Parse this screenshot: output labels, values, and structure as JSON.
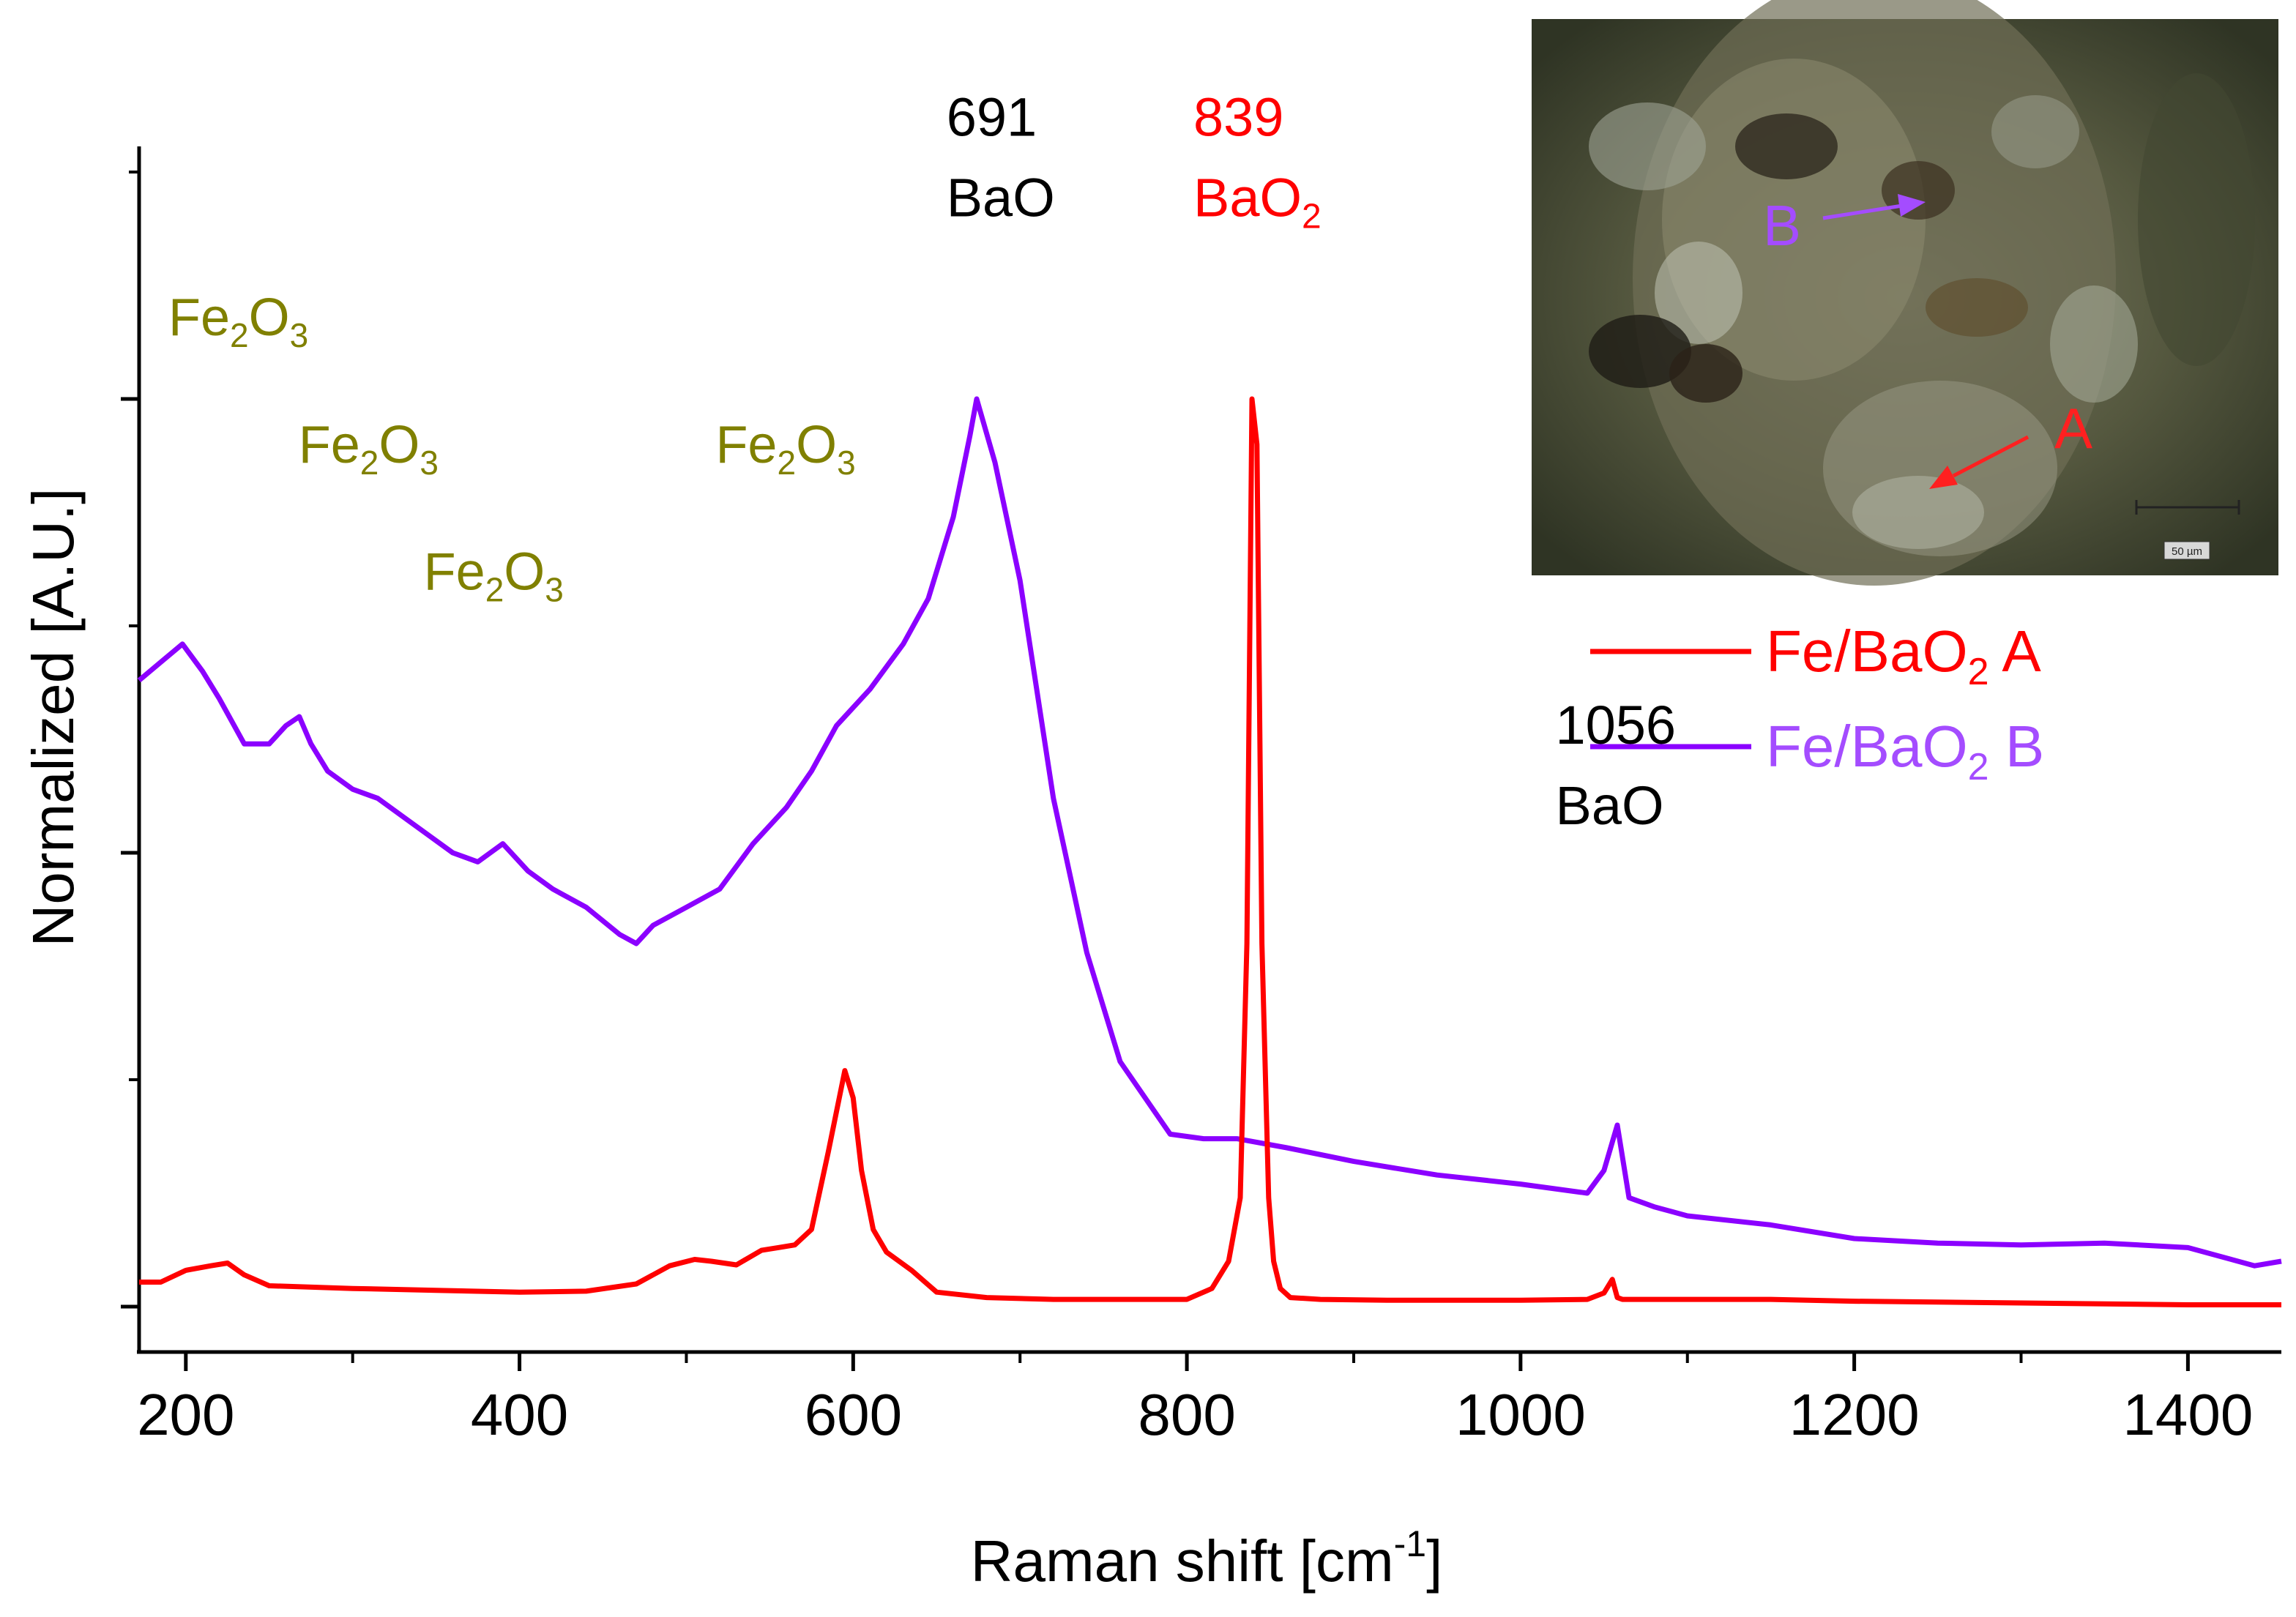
{
  "chart_data": {
    "type": "line",
    "xlabel_main": "Raman shift [cm",
    "xlabel_sup": "-1",
    "xlabel_end": "]",
    "ylabel": "Normalized [A.U.]",
    "xlim": [
      172,
      1456
    ],
    "ylim": [
      0,
      1
    ],
    "x_ticks": [
      200,
      400,
      600,
      800,
      1000,
      1200,
      1400
    ],
    "x_tick_labels": [
      "200",
      "400",
      "600",
      "800",
      "1000",
      "1200",
      "1400"
    ],
    "y_ticks_major": [
      0,
      0.5,
      1
    ],
    "y_ticks_minor": [
      0.25,
      0.75,
      1.25
    ],
    "colors": {
      "A": "#ff0000",
      "B": "#8b00ff",
      "annot_fe": "#808000",
      "black": "#000000"
    },
    "series": [
      {
        "name": "Fe/BaO2 A",
        "legend_base": "Fe/BaO",
        "legend_sub": "2",
        "legend_end": " A",
        "color": "#ff0000",
        "x": [
          172,
          185,
          200,
          215,
          225,
          235,
          250,
          300,
          350,
          400,
          440,
          470,
          490,
          505,
          515,
          530,
          545,
          555,
          565,
          575,
          585,
          595,
          600,
          605,
          612,
          620,
          635,
          650,
          680,
          720,
          760,
          800,
          815,
          825,
          832,
          836,
          839,
          842,
          845,
          849,
          852,
          856,
          862,
          880,
          920,
          1000,
          1040,
          1050,
          1055,
          1058,
          1061,
          1065,
          1075,
          1150,
          1200,
          1300,
          1400,
          1456
        ],
        "y": [
          0.027,
          0.027,
          0.04,
          0.045,
          0.048,
          0.035,
          0.023,
          0.02,
          0.018,
          0.016,
          0.017,
          0.025,
          0.045,
          0.052,
          0.05,
          0.046,
          0.062,
          0.065,
          0.068,
          0.085,
          0.17,
          0.26,
          0.23,
          0.15,
          0.085,
          0.06,
          0.04,
          0.016,
          0.01,
          0.008,
          0.008,
          0.008,
          0.02,
          0.05,
          0.12,
          0.4,
          1.0,
          0.95,
          0.4,
          0.12,
          0.05,
          0.02,
          0.01,
          0.008,
          0.007,
          0.007,
          0.008,
          0.015,
          0.03,
          0.01,
          0.008,
          0.008,
          0.008,
          0.008,
          0.006,
          0.004,
          0.002,
          0.002
        ]
      },
      {
        "name": "Fe/BaO2 B",
        "legend_base": "Fe/BaO",
        "legend_sub": "2",
        "legend_end": " B",
        "color": "#8b00ff",
        "x": [
          172,
          185,
          198,
          210,
          220,
          235,
          250,
          260,
          268,
          275,
          285,
          300,
          315,
          330,
          345,
          360,
          375,
          390,
          405,
          420,
          440,
          460,
          470,
          480,
          500,
          520,
          540,
          560,
          575,
          590,
          610,
          630,
          645,
          660,
          670,
          674,
          685,
          700,
          720,
          740,
          760,
          790,
          810,
          830,
          860,
          900,
          950,
          1000,
          1040,
          1050,
          1058,
          1065,
          1080,
          1100,
          1150,
          1200,
          1250,
          1300,
          1350,
          1400,
          1440,
          1456
        ],
        "y": [
          0.69,
          0.71,
          0.73,
          0.7,
          0.67,
          0.62,
          0.62,
          0.64,
          0.65,
          0.62,
          0.59,
          0.57,
          0.56,
          0.54,
          0.52,
          0.5,
          0.49,
          0.51,
          0.48,
          0.46,
          0.44,
          0.41,
          0.4,
          0.42,
          0.44,
          0.46,
          0.51,
          0.55,
          0.59,
          0.64,
          0.68,
          0.73,
          0.78,
          0.87,
          0.96,
          1.0,
          0.93,
          0.8,
          0.56,
          0.39,
          0.27,
          0.19,
          0.185,
          0.185,
          0.175,
          0.16,
          0.145,
          0.135,
          0.125,
          0.15,
          0.2,
          0.12,
          0.11,
          0.1,
          0.09,
          0.075,
          0.07,
          0.068,
          0.07,
          0.065,
          0.045,
          0.05
        ]
      }
    ],
    "peak_annotations": [
      {
        "x": 691,
        "y": 1.29,
        "value": "691",
        "compound": "BaO",
        "compound_sub": "",
        "color": "#000000"
      },
      {
        "x": 839,
        "y": 1.29,
        "value": "839",
        "compound": "BaO",
        "compound_sub": "2",
        "color": "#ff0000"
      },
      {
        "x": 1056,
        "y": 0.62,
        "value": "1056",
        "compound": "BaO",
        "compound_sub": "",
        "color": "#000000"
      }
    ],
    "fe_annotations": [
      {
        "x": 172,
        "y": 1.07,
        "text": "Fe",
        "sub1": "2",
        "mid": "O",
        "sub2": "3"
      },
      {
        "x": 250,
        "y": 0.93,
        "text": "Fe",
        "sub1": "2",
        "mid": "O",
        "sub2": "3"
      },
      {
        "x": 325,
        "y": 0.79,
        "text": "Fe",
        "sub1": "2",
        "mid": "O",
        "sub2": "3"
      },
      {
        "x": 500,
        "y": 0.93,
        "text": "Fe",
        "sub1": "2",
        "mid": "O",
        "sub2": "3"
      }
    ],
    "inset": {
      "label_A": "A",
      "label_B": "B",
      "scale_label": "50 µm"
    }
  }
}
